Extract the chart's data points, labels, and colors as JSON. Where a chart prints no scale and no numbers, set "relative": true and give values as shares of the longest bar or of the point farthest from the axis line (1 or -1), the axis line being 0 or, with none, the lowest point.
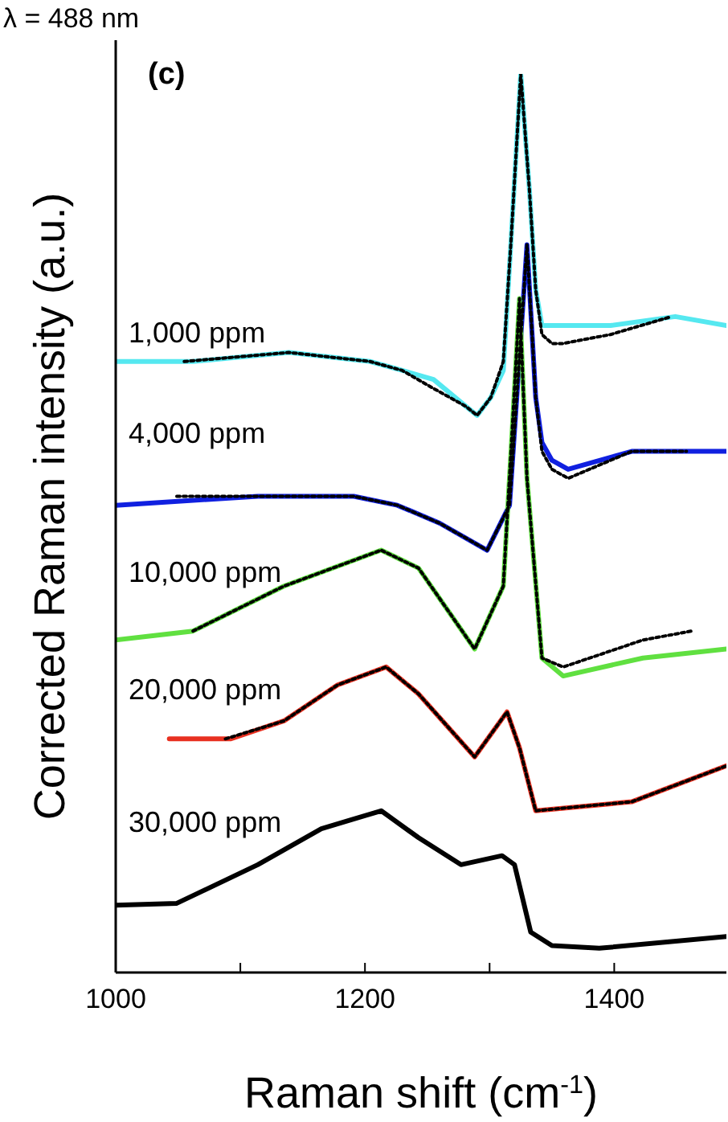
{
  "chart_data": {
    "type": "line",
    "relative": true,
    "xlabel": "Raman shift (cm$^{-1}$)",
    "ylabel": "Corrected Raman intensity (a.u.)",
    "annotations": [
      "λ = 488 nm",
      "(c)"
    ],
    "xlim": [
      1000,
      1490
    ],
    "xticks": [
      1000,
      {
        "value": 1100,
        "label": null
      },
      1200,
      {
        "value": 1300,
        "label": null
      },
      1400
    ],
    "marker": "none",
    "series": [
      {
        "name": "1,000 ppm",
        "color": "#55e8f0",
        "x": [
          1000,
          1062,
          1139,
          1204,
          1230,
          1255,
          1281,
          1290,
          1301,
          1311,
          1317,
          1325,
          1332,
          1337,
          1342,
          1355,
          1397,
          1449,
          1490
        ],
        "values": [
          0.68,
          0.68,
          0.69,
          0.68,
          0.67,
          0.66,
          0.63,
          0.62,
          0.64,
          0.67,
          0.81,
          1,
          0.87,
          0.76,
          0.72,
          0.72,
          0.72,
          0.73,
          0.72
        ]
      },
      {
        "name": "4,000 ppm",
        "color": "#1020e0",
        "x": [
          1000,
          1114,
          1191,
          1226,
          1260,
          1298,
          1316,
          1330,
          1337,
          1342,
          1350,
          1363,
          1414,
          1458,
          1490
        ],
        "values": [
          0.52,
          0.53,
          0.53,
          0.52,
          0.5,
          0.47,
          0.52,
          0.81,
          0.64,
          0.59,
          0.57,
          0.56,
          0.58,
          0.58,
          0.58
        ]
      },
      {
        "name": "10,000 ppm",
        "color": "#60e040",
        "x": [
          1000,
          1062,
          1135,
          1213,
          1243,
          1288,
          1311,
          1318,
          1324,
          1330,
          1342,
          1359,
          1423,
          1490
        ],
        "values": [
          0.37,
          0.38,
          0.43,
          0.47,
          0.45,
          0.36,
          0.43,
          0.6,
          0.75,
          0.55,
          0.35,
          0.33,
          0.35,
          0.36
        ]
      },
      {
        "name": "20,000 ppm",
        "color": "#e83020",
        "x": [
          1043,
          1092,
          1135,
          1178,
          1217,
          1243,
          1288,
          1314,
          1324,
          1337,
          1414,
          1490
        ],
        "values": [
          0.26,
          0.26,
          0.28,
          0.32,
          0.34,
          0.31,
          0.24,
          0.29,
          0.25,
          0.18,
          0.19,
          0.23
        ]
      },
      {
        "name": "30,000 ppm",
        "color": "#000000",
        "x": [
          1000,
          1049,
          1114,
          1165,
          1213,
          1243,
          1277,
          1310,
          1320,
          1333,
          1350,
          1388,
          1490
        ],
        "values": [
          0.075,
          0.077,
          0.12,
          0.16,
          0.18,
          0.15,
          0.12,
          0.13,
          0.12,
          0.045,
          0.03,
          0.027,
          0.04
        ]
      },
      {
        "color": "#000000",
        "line_style": "dotted",
        "x": [
          1055,
          1139,
          1204,
          1230,
          1255,
          1281,
          1290,
          1301,
          1311,
          1317,
          1325,
          1332,
          1337,
          1342,
          1350,
          1359,
          1397,
          1446
        ],
        "values": [
          0.68,
          0.69,
          0.68,
          0.67,
          0.65,
          0.63,
          0.62,
          0.64,
          0.68,
          0.81,
          1,
          0.87,
          0.76,
          0.71,
          0.7,
          0.7,
          0.71,
          0.73
        ]
      },
      {
        "color": "#000000",
        "line_style": "dotted",
        "x": [
          1049,
          1114,
          1191,
          1226,
          1260,
          1298,
          1316,
          1330,
          1337,
          1342,
          1350,
          1363,
          1414,
          1458
        ],
        "values": [
          0.53,
          0.53,
          0.53,
          0.52,
          0.5,
          0.47,
          0.52,
          0.81,
          0.64,
          0.58,
          0.56,
          0.55,
          0.58,
          0.58
        ]
      },
      {
        "color": "#000000",
        "line_style": "dotted",
        "x": [
          1062,
          1135,
          1213,
          1243,
          1288,
          1311,
          1318,
          1324,
          1330,
          1342,
          1359,
          1423,
          1462
        ],
        "values": [
          0.38,
          0.43,
          0.47,
          0.45,
          0.36,
          0.43,
          0.6,
          0.75,
          0.55,
          0.35,
          0.34,
          0.37,
          0.38
        ]
      },
      {
        "color": "#000000",
        "line_style": "dotted",
        "x": [
          1088,
          1135,
          1178,
          1217,
          1243,
          1288,
          1314,
          1324,
          1337,
          1414,
          1490
        ],
        "values": [
          0.26,
          0.28,
          0.32,
          0.34,
          0.31,
          0.24,
          0.29,
          0.25,
          0.18,
          0.19,
          0.23
        ]
      }
    ]
  }
}
